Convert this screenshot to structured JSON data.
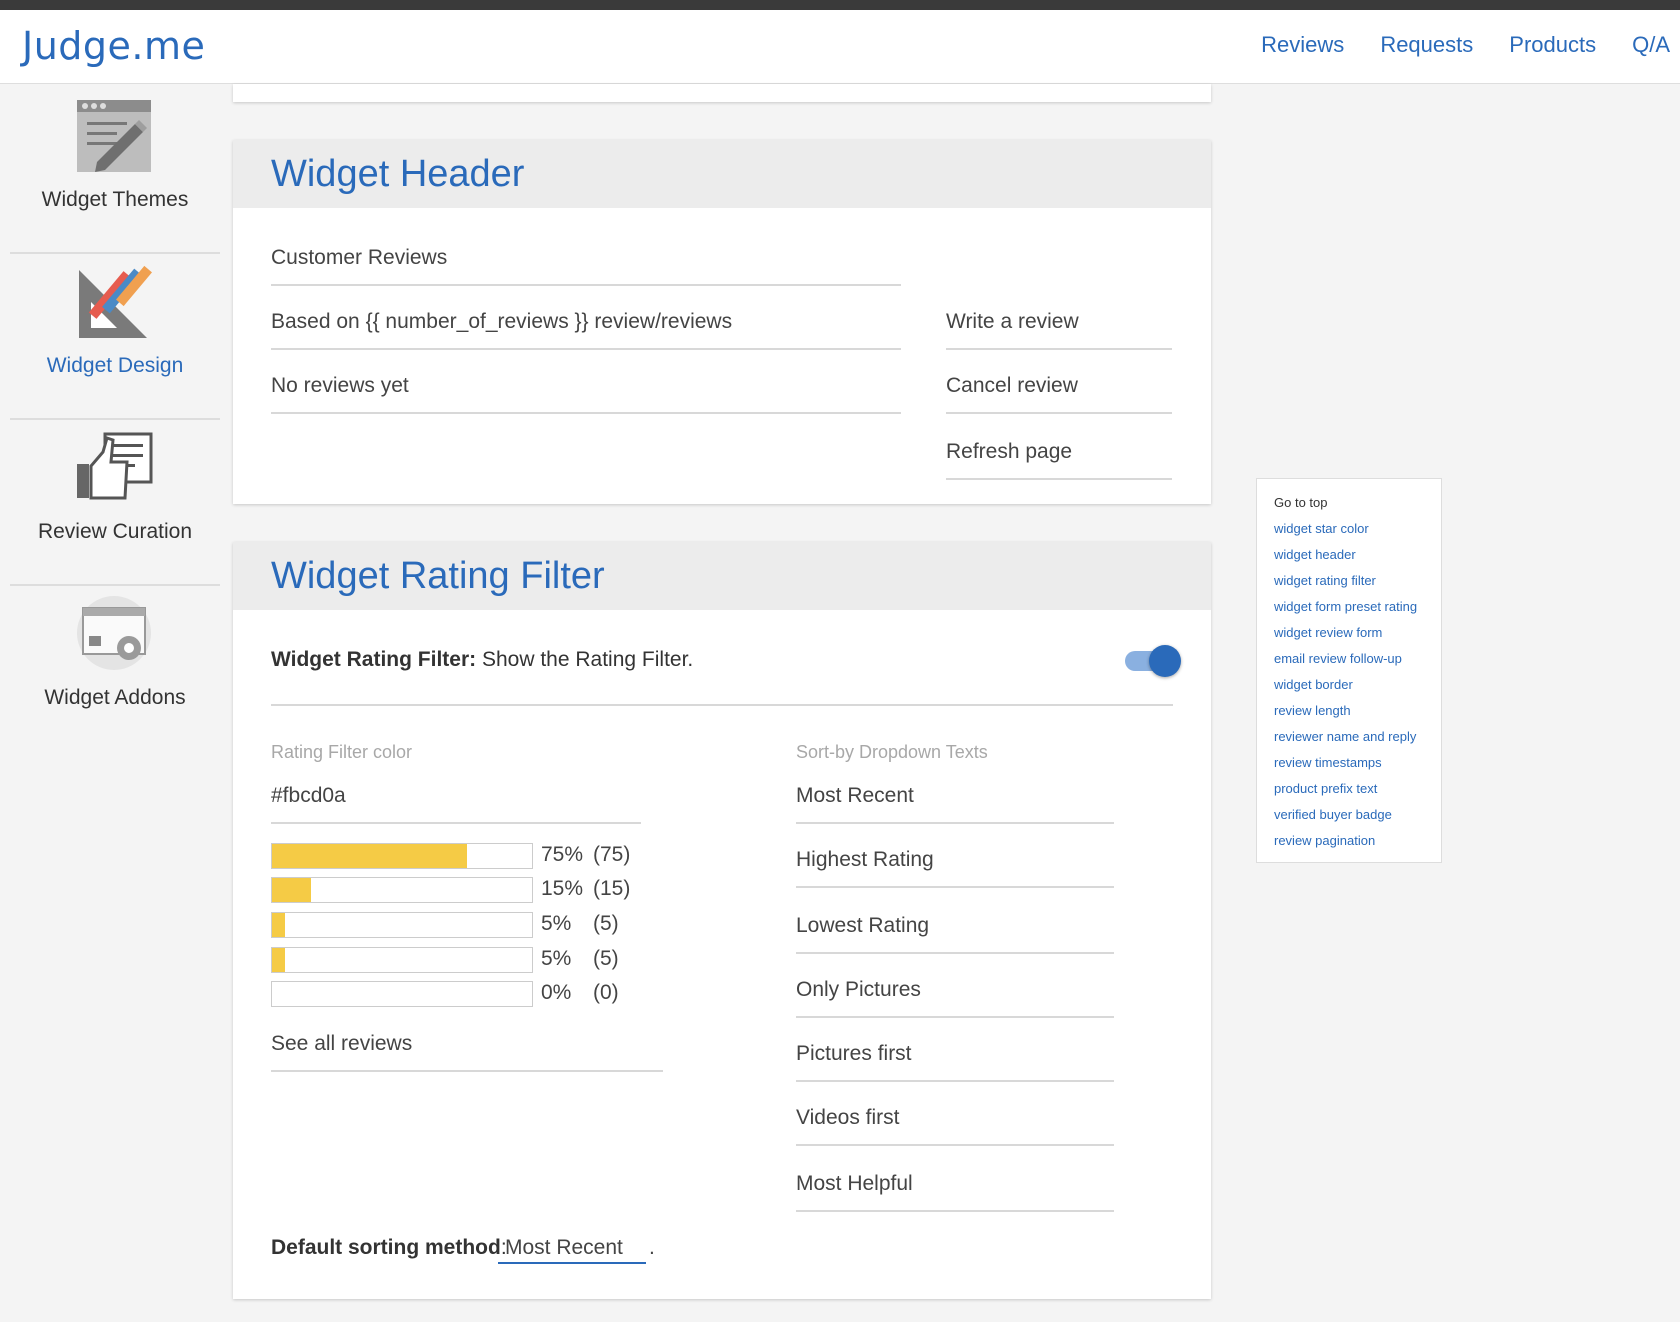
{
  "brand": {
    "logo": "Judge.me",
    "accent": "#2a6aba"
  },
  "nav": {
    "links": [
      "Reviews",
      "Requests",
      "Products",
      "Q/A"
    ]
  },
  "sidebar": {
    "items": [
      {
        "label": "Widget Themes",
        "icon": "widget-themes-icon",
        "active": false
      },
      {
        "label": "Widget Design",
        "icon": "widget-design-icon",
        "active": true
      },
      {
        "label": "Review Curation",
        "icon": "review-curation-icon",
        "active": false
      },
      {
        "label": "Widget Addons",
        "icon": "widget-addons-icon",
        "active": false
      }
    ]
  },
  "widget_header": {
    "title": "Widget Header",
    "fields": {
      "customer_reviews": "Customer Reviews",
      "based_on": "Based on {{ number_of_reviews }} review/reviews",
      "no_reviews": "No reviews yet",
      "write_review": "Write a review",
      "cancel_review": "Cancel review",
      "refresh_page": "Refresh page"
    }
  },
  "rating_filter": {
    "title": "Widget Rating Filter",
    "toggle_label_bold": "Widget Rating Filter:",
    "toggle_label_text": " Show the Rating Filter.",
    "toggle_on": true,
    "color_label": "Rating Filter color",
    "color_value": "#fbcd0a",
    "bar_color": "#f5cb45",
    "bars": [
      {
        "percent": 75,
        "pct_label": "75%",
        "count_label": "(75)"
      },
      {
        "percent": 15,
        "pct_label": "15%",
        "count_label": "(15)"
      },
      {
        "percent": 5,
        "pct_label": "5%",
        "count_label": "(5)"
      },
      {
        "percent": 5,
        "pct_label": "5%",
        "count_label": "(5)"
      },
      {
        "percent": 0,
        "pct_label": "0%",
        "count_label": "(0)"
      }
    ],
    "see_all": "See all reviews",
    "sort_label": "Sort-by Dropdown Texts",
    "sort_options": [
      "Most Recent",
      "Highest Rating",
      "Lowest Rating",
      "Only Pictures",
      "Pictures first",
      "Videos first",
      "Most Helpful"
    ],
    "default_sort_label": "Default sorting method",
    "default_sort_colon": ":",
    "default_sort_value": "Most Recent",
    "default_sort_period": "."
  },
  "toc": {
    "go_to_top": "Go to top",
    "links": [
      "widget star color",
      "widget header",
      "widget rating filter",
      "widget form preset rating",
      "widget review form",
      "email review follow-up",
      "widget border",
      "review length",
      "reviewer name and reply",
      "review timestamps",
      "product prefix text",
      "verified buyer badge",
      "review pagination"
    ]
  }
}
